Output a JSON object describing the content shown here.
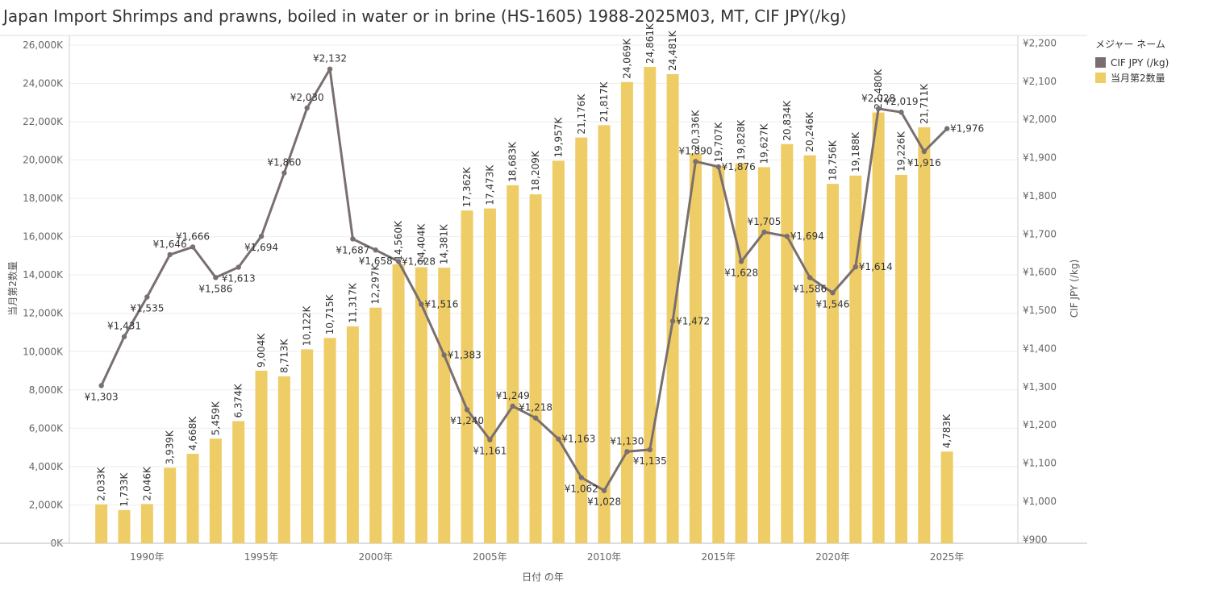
{
  "title": "Japan Import Shrimps and prawns, boiled in water or in brine (HS-1605) 1988-2025M03, MT, CIF JPY(/kg)",
  "legend": {
    "title": "メジャー ネーム",
    "items": [
      {
        "label": "CIF JPY (/kg)",
        "color": "#7a6f6f"
      },
      {
        "label": "当月第2数量",
        "color": "#eecc66"
      }
    ]
  },
  "chart_data": {
    "type": "bar",
    "xlabel": "日付 の年",
    "ylabel": "当月第2数量",
    "y2label": "CIF JPY (/kg)",
    "ylim": [
      0,
      26500000
    ],
    "y2lim": [
      890,
      2220
    ],
    "y_ticks": [
      {
        "value": 0,
        "label": "0K"
      },
      {
        "value": 2000000,
        "label": "2,000K"
      },
      {
        "value": 4000000,
        "label": "4,000K"
      },
      {
        "value": 6000000,
        "label": "6,000K"
      },
      {
        "value": 8000000,
        "label": "8,000K"
      },
      {
        "value": 10000000,
        "label": "10,000K"
      },
      {
        "value": 12000000,
        "label": "12,000K"
      },
      {
        "value": 14000000,
        "label": "14,000K"
      },
      {
        "value": 16000000,
        "label": "16,000K"
      },
      {
        "value": 18000000,
        "label": "18,000K"
      },
      {
        "value": 20000000,
        "label": "20,000K"
      },
      {
        "value": 22000000,
        "label": "22,000K"
      },
      {
        "value": 24000000,
        "label": "24,000K"
      },
      {
        "value": 26000000,
        "label": "26,000K"
      }
    ],
    "y2_ticks": [
      {
        "value": 900,
        "label": "¥900"
      },
      {
        "value": 1000,
        "label": "¥1,000"
      },
      {
        "value": 1100,
        "label": "¥1,100"
      },
      {
        "value": 1200,
        "label": "¥1,200"
      },
      {
        "value": 1300,
        "label": "¥1,300"
      },
      {
        "value": 1400,
        "label": "¥1,400"
      },
      {
        "value": 1500,
        "label": "¥1,500"
      },
      {
        "value": 1600,
        "label": "¥1,600"
      },
      {
        "value": 1700,
        "label": "¥1,700"
      },
      {
        "value": 1800,
        "label": "¥1,800"
      },
      {
        "value": 1900,
        "label": "¥1,900"
      },
      {
        "value": 2000,
        "label": "¥2,000"
      },
      {
        "value": 2100,
        "label": "¥2,100"
      },
      {
        "value": 2200,
        "label": "¥2,200"
      }
    ],
    "x_ticks": [
      {
        "year": 1990,
        "label": "1990年"
      },
      {
        "year": 1995,
        "label": "1995年"
      },
      {
        "year": 2000,
        "label": "2000年"
      },
      {
        "year": 2005,
        "label": "2005年"
      },
      {
        "year": 2010,
        "label": "2010年"
      },
      {
        "year": 2015,
        "label": "2015年"
      },
      {
        "year": 2020,
        "label": "2020年"
      },
      {
        "year": 2025,
        "label": "2025年"
      }
    ],
    "years": [
      1988,
      1989,
      1990,
      1991,
      1992,
      1993,
      1994,
      1995,
      1996,
      1997,
      1998,
      1999,
      2000,
      2001,
      2002,
      2003,
      2004,
      2005,
      2006,
      2007,
      2008,
      2009,
      2010,
      2011,
      2012,
      2013,
      2014,
      2015,
      2016,
      2017,
      2018,
      2019,
      2020,
      2021,
      2022,
      2023,
      2024,
      2025
    ],
    "series": [
      {
        "name": "当月第2数量",
        "axis": "left",
        "color": "#eecc66",
        "values": [
          2033000,
          1733000,
          2046000,
          3939000,
          4668000,
          5459000,
          6374000,
          9004000,
          8713000,
          10122000,
          10715000,
          11317000,
          12297000,
          14560000,
          14404000,
          14381000,
          17362000,
          17473000,
          18683000,
          18209000,
          19957000,
          21176000,
          21817000,
          24069000,
          24861000,
          24481000,
          20336000,
          19707000,
          19828000,
          19627000,
          20834000,
          20246000,
          18756000,
          19188000,
          22480000,
          19226000,
          21711000,
          4783000
        ],
        "labels": [
          "2,033K",
          "1,733K",
          "2,046K",
          "3,939K",
          "4,668K",
          "5,459K",
          "6,374K",
          "9,004K",
          "8,713K",
          "10,122K",
          "10,715K",
          "11,317K",
          "12,297K",
          "14,560K",
          "14,404K",
          "14,381K",
          "17,362K",
          "17,473K",
          "18,683K",
          "18,209K",
          "19,957K",
          "21,176K",
          "21,817K",
          "24,069K",
          "24,861K",
          "24,481K",
          "20,336K",
          "19,707K",
          "19,828K",
          "19,627K",
          "20,834K",
          "20,246K",
          "18,756K",
          "19,188K",
          "22,480K",
          "19,226K",
          "21,711K",
          "4,783K"
        ]
      },
      {
        "name": "CIF JPY (/kg)",
        "axis": "right",
        "color": "#7a6f6f",
        "values": [
          1303,
          1431,
          1535,
          1646,
          1666,
          1586,
          1613,
          1694,
          1860,
          2030,
          2132,
          1687,
          1658,
          1628,
          1516,
          1383,
          1240,
          1161,
          1249,
          1218,
          1163,
          1062,
          1028,
          1130,
          1135,
          1472,
          1890,
          1876,
          1628,
          1705,
          1694,
          1586,
          1546,
          1614,
          2028,
          2019,
          1916,
          1976
        ],
        "labels": [
          "¥1,303",
          "¥1,431",
          "¥1,535",
          "¥1,646",
          "¥1,666",
          "¥1,586",
          "¥1,613",
          "¥1,694",
          "¥1,860",
          "¥2,030",
          "¥2,132",
          "¥1,687",
          "¥1,658",
          "¥1,628",
          "¥1,516",
          "¥1,383",
          "¥1,240",
          "¥1,161",
          "¥1,249",
          "¥1,218",
          "¥1,163",
          "¥1,062",
          "¥1,028",
          "¥1,130",
          "¥1,135",
          "¥1,472",
          "¥1,890",
          "¥1,876",
          "¥1,628",
          "¥1,705",
          "¥1,694",
          "¥1,586",
          "¥1,546",
          "¥1,614",
          "¥2,028",
          "¥2,019",
          "¥1,916",
          "¥1,976"
        ],
        "label_side": [
          "below",
          "above",
          "below",
          "above",
          "above",
          "below",
          "below",
          "below",
          "above",
          "above",
          "above",
          "below",
          "below",
          "right",
          "right",
          "right",
          "below",
          "below",
          "above",
          "above",
          "right",
          "below",
          "below",
          "above",
          "below",
          "right",
          "above",
          "right",
          "below",
          "above",
          "right",
          "below",
          "below",
          "right",
          "above",
          "above",
          "below",
          "right"
        ]
      }
    ],
    "grid": true,
    "legend_position": "top-right"
  }
}
